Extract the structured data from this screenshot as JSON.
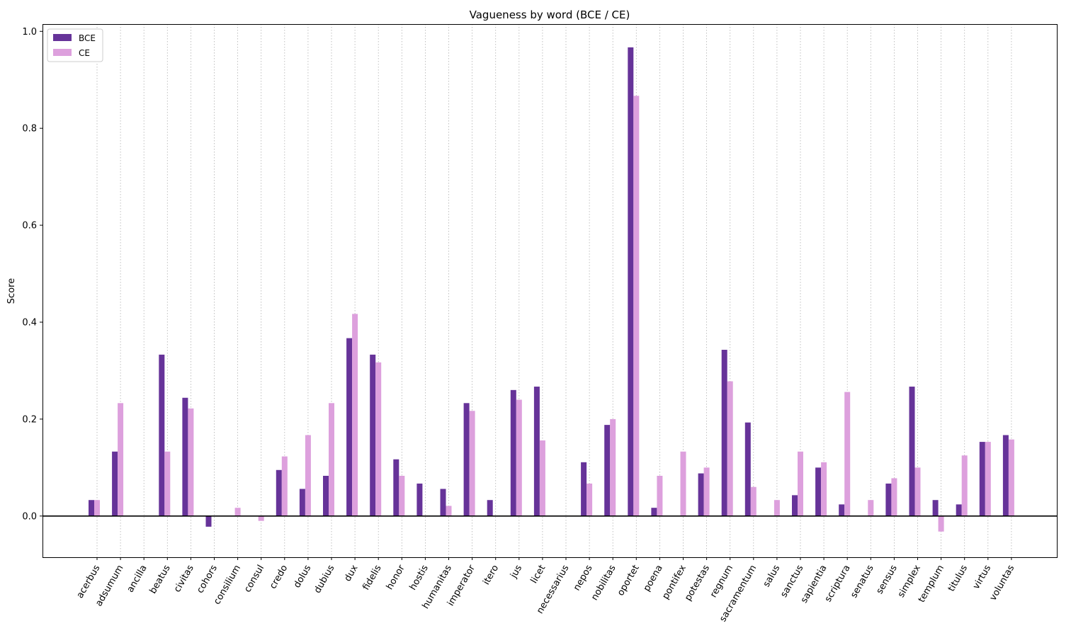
{
  "colors": {
    "bce": "#663399",
    "ce": "#dda0dd",
    "zero_line": "#000000",
    "grid": "#b0b0b0"
  },
  "chart_data": {
    "type": "bar",
    "title": "Vagueness by word (BCE / CE)",
    "xlabel": "",
    "ylabel": "Score",
    "ylim": [
      -0.085,
      1.015
    ],
    "yticks": [
      "0.0",
      "0.2",
      "0.4",
      "0.6",
      "0.8",
      "1.0"
    ],
    "grid": "vertical dotted",
    "legend_position": "top-left",
    "categories": [
      "acerbus",
      "adsumum",
      "ancilla",
      "beatus",
      "civitas",
      "cohors",
      "consilium",
      "consul",
      "credo",
      "dolus",
      "dubius",
      "dux",
      "fidelis",
      "honor",
      "hostis",
      "humanitas",
      "imperator",
      "itero",
      "jus",
      "licet",
      "necessarius",
      "nepos",
      "nobilitas",
      "oportet",
      "poena",
      "pontifex",
      "potestas",
      "regnum",
      "sacramentum",
      "salus",
      "sanctus",
      "sapientia",
      "scriptura",
      "senatus",
      "sensus",
      "simplex",
      "templum",
      "titulus",
      "virtus",
      "voluntas"
    ],
    "series": [
      {
        "name": "BCE",
        "values": [
          0.033,
          0.133,
          0,
          0.333,
          0.244,
          -0.022,
          0,
          0,
          0.095,
          0.056,
          0.083,
          0.367,
          0.333,
          0.117,
          0.067,
          0.056,
          0.233,
          0.033,
          0.26,
          0.267,
          0,
          0.111,
          0.188,
          0.967,
          0.017,
          0,
          0.088,
          0.343,
          0.193,
          0,
          0.043,
          0.1,
          0.024,
          0,
          0.067,
          0.267,
          0.033,
          0.024,
          0.153,
          0.167
        ]
      },
      {
        "name": "CE",
        "values": [
          0.033,
          0.233,
          0,
          0.133,
          0.222,
          0,
          0.017,
          -0.01,
          0.123,
          0.167,
          0.233,
          0.417,
          0.317,
          0.083,
          0,
          0.021,
          0.217,
          0,
          0.24,
          0.156,
          0,
          0.067,
          0.2,
          0.867,
          0.083,
          0.133,
          0.1,
          0.278,
          0.06,
          0.033,
          0.133,
          0.111,
          0.256,
          0.033,
          0.078,
          0.1,
          -0.032,
          0.125,
          0.153,
          0.158
        ]
      }
    ]
  }
}
